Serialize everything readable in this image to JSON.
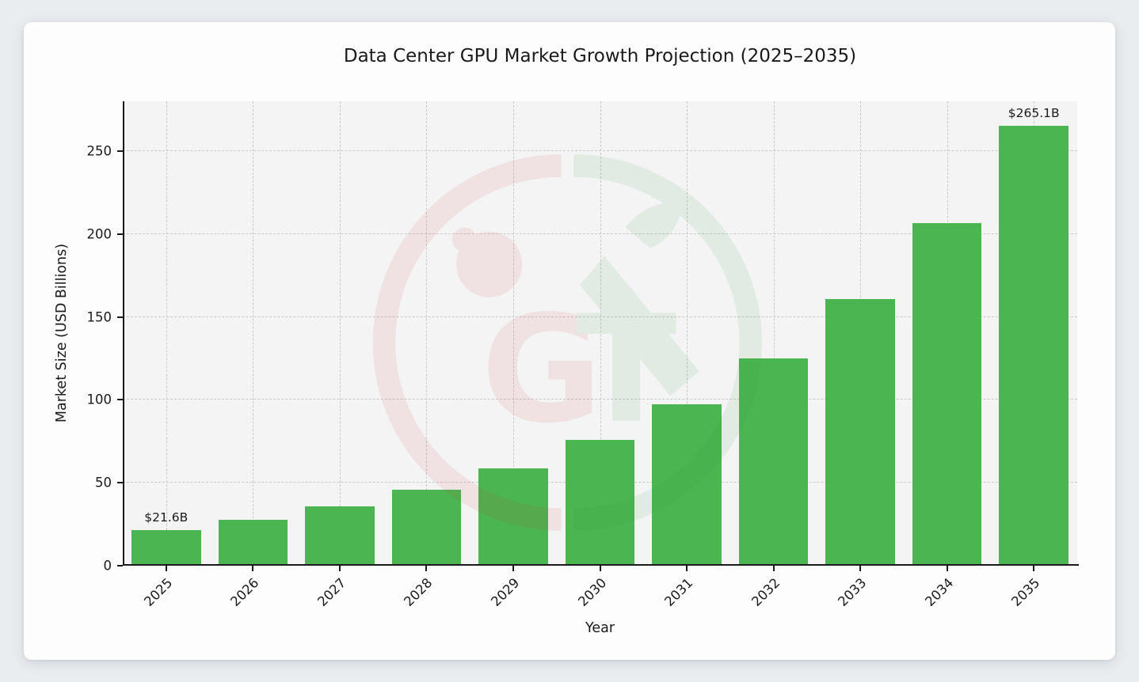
{
  "window": {
    "background": "#e9edf0",
    "card_background": "#fdfdfd"
  },
  "chart_data": {
    "type": "bar",
    "title": "Data Center GPU Market Growth Projection (2025–2035)",
    "xlabel": "Year",
    "ylabel": "Market Size (USD Billions)",
    "categories": [
      "2025",
      "2026",
      "2027",
      "2028",
      "2029",
      "2030",
      "2031",
      "2032",
      "2033",
      "2034",
      "2035"
    ],
    "values": [
      21.6,
      27.8,
      35.7,
      45.8,
      58.9,
      75.7,
      97.3,
      125.0,
      160.6,
      206.4,
      265.1
    ],
    "ylim": [
      0,
      280
    ],
    "yticks": [
      0,
      50,
      100,
      150,
      200,
      250
    ],
    "bar_color": "#4bb551",
    "grid": true,
    "grid_style": "dashed",
    "legend_position": "none",
    "annotations": [
      {
        "category": "2025",
        "text": "$21.6B"
      },
      {
        "category": "2035",
        "text": "$265.1B"
      }
    ],
    "watermark": {
      "name": "bull-bear-trading-logo",
      "colors": {
        "bear_red": "#cc3b2f",
        "bull_green": "#2f9e44"
      }
    }
  }
}
